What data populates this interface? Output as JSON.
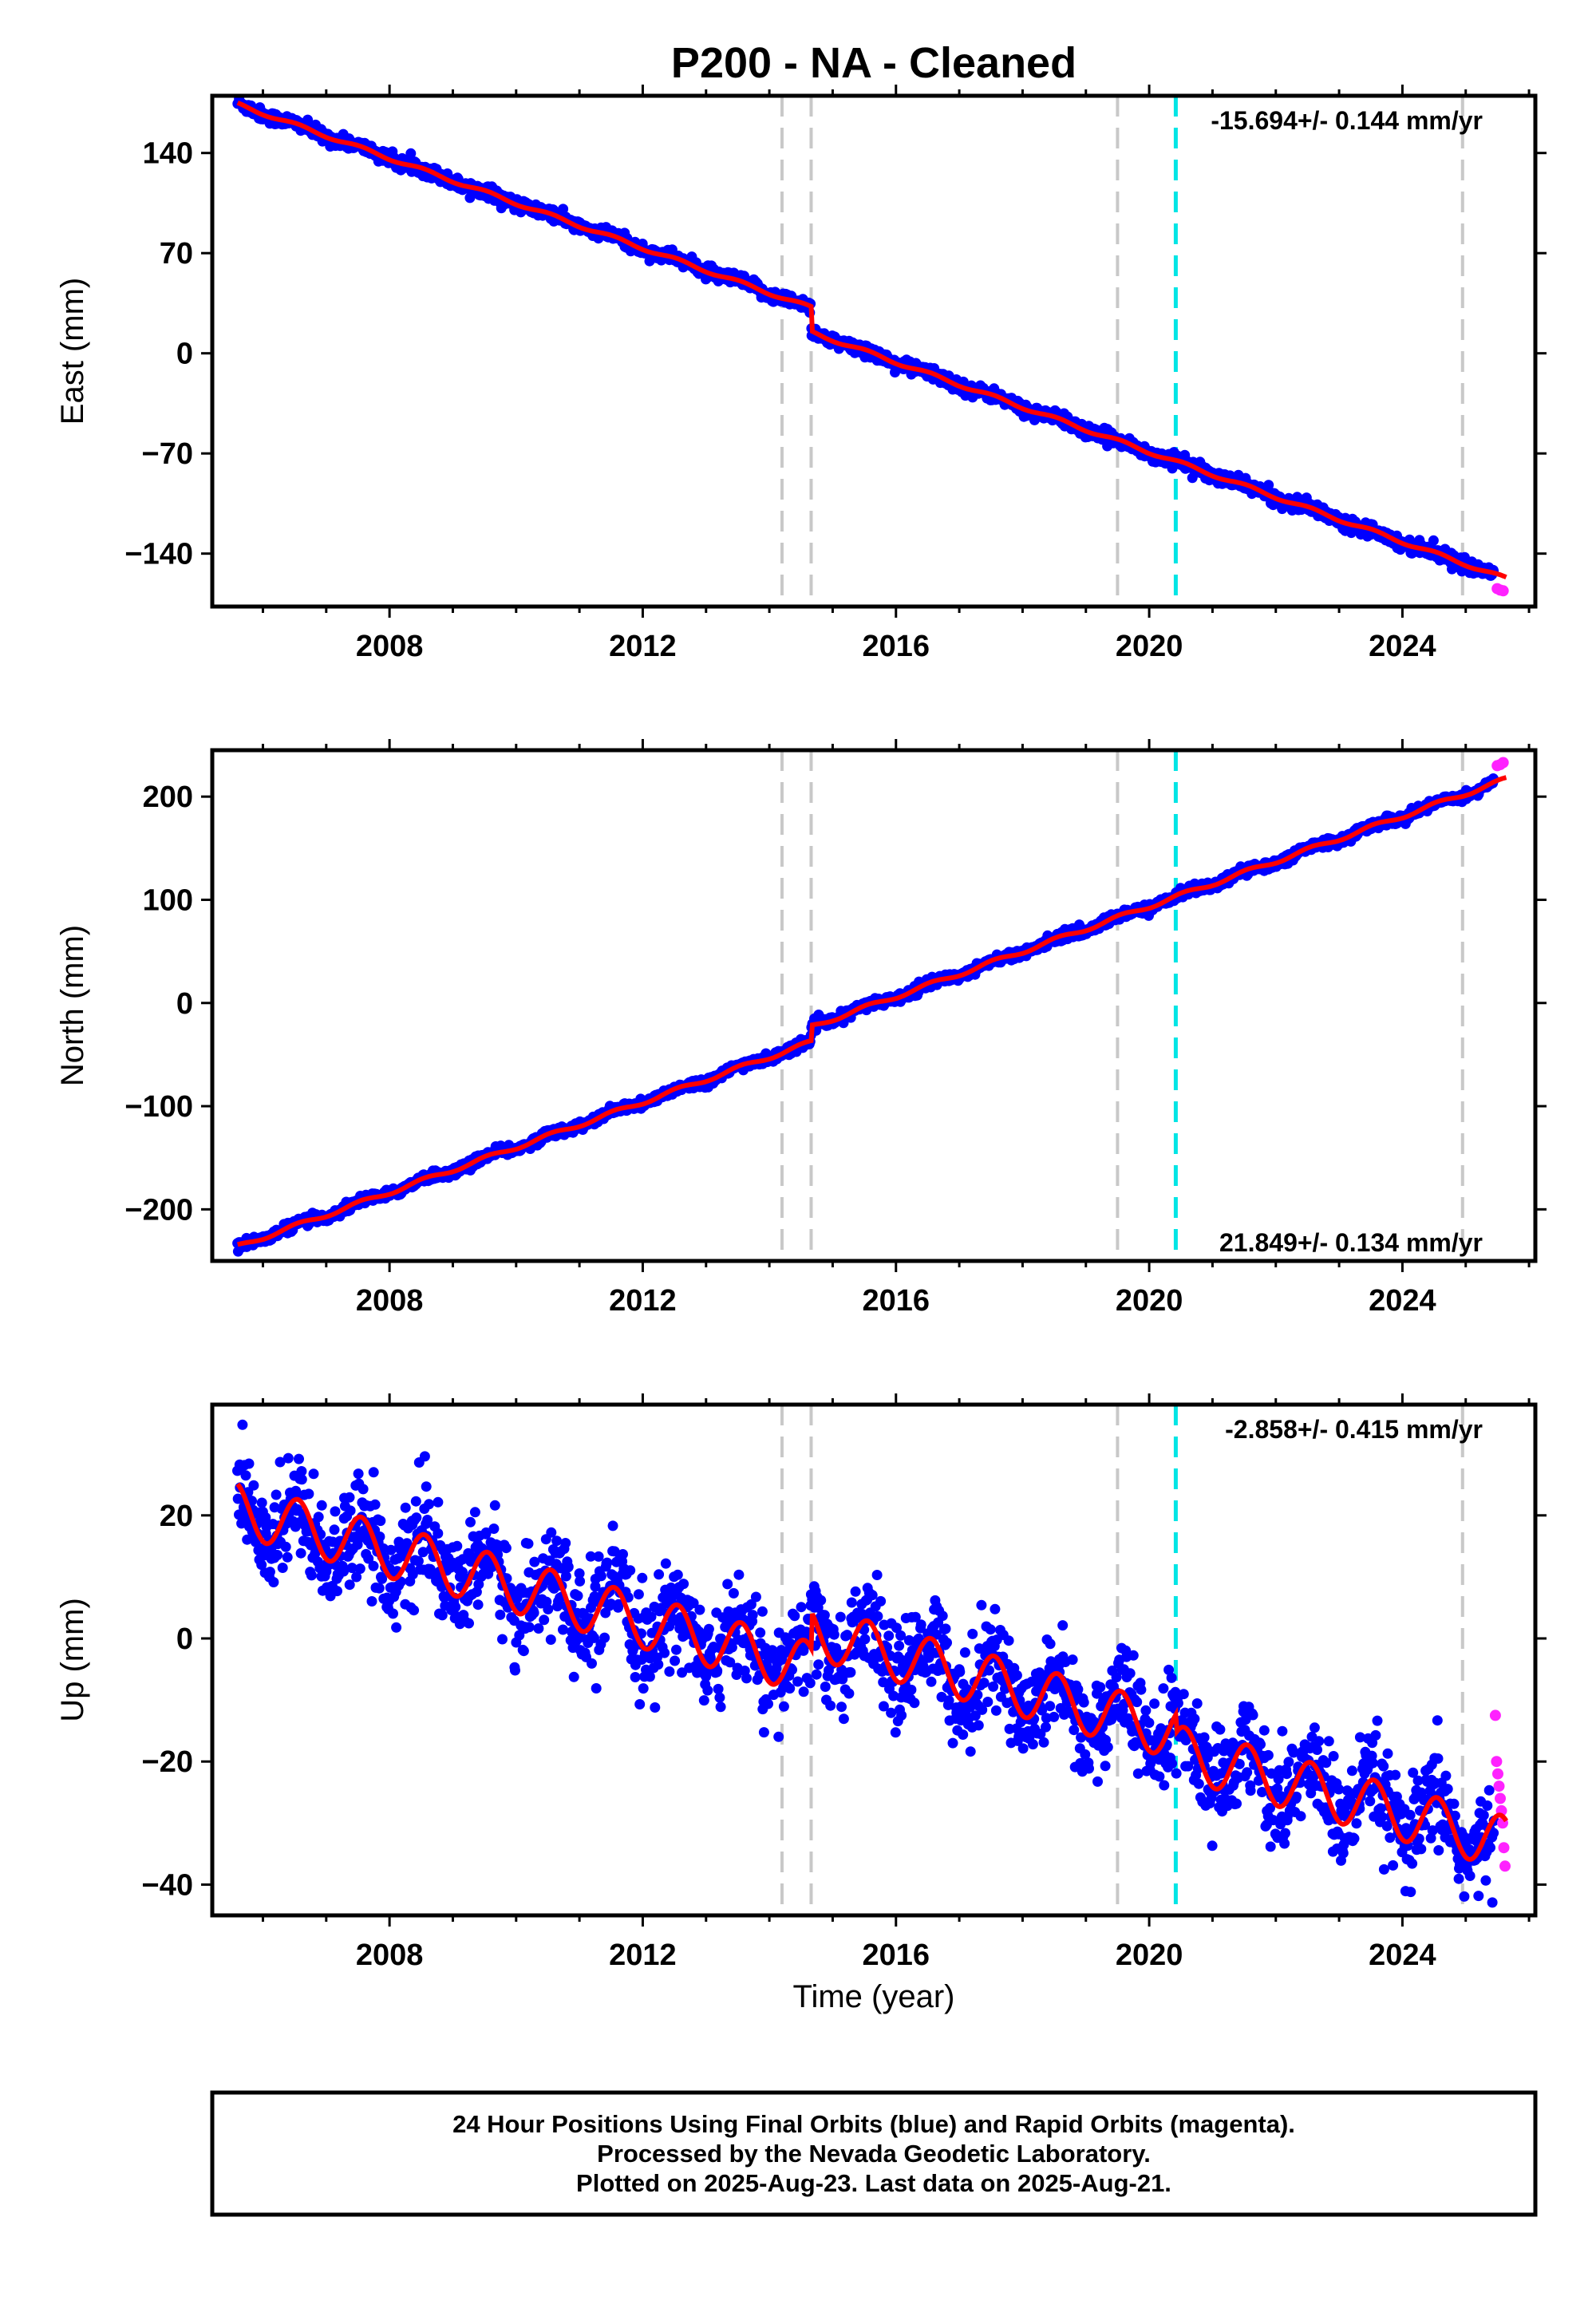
{
  "title": "P200  - NA - Cleaned",
  "xlabel": "Time (year)",
  "footer": {
    "line1": "24 Hour Positions Using Final Orbits (blue) and Rapid Orbits (magenta).",
    "line2": "Processed by the Nevada Geodetic Laboratory.",
    "line3": "Plotted on 2025-Aug-23. Last data on 2025-Aug-21."
  },
  "colors": {
    "final_orbit_points": "#0000ff",
    "rapid_orbit_points": "#ff22ff",
    "model_fit": "#ff0000",
    "event_line": "#c8c8c8",
    "antenna_change_line": "#00e5e5"
  },
  "chart_data": [
    {
      "type": "scatter",
      "component": "east",
      "ylabel": "East (mm)",
      "rate_label": "-15.694+/- 0.144 mm/yr",
      "rate_position": "top-right",
      "xlim": [
        2005.2,
        2026.1
      ],
      "ylim": [
        -177,
        180
      ],
      "x_ticks": [
        2008,
        2012,
        2016,
        2020,
        2024
      ],
      "y_ticks": [
        140,
        70,
        0,
        -70,
        -140
      ],
      "y_tick_labels": [
        "140",
        "70",
        "0",
        "−70",
        "−140"
      ],
      "start_year": 2005.6,
      "end_year": 2025.64,
      "start_value": 174,
      "trend_mm_per_yr": -15.694,
      "offsets": [
        {
          "year": 2014.66,
          "value": -17
        }
      ],
      "seasonal_amplitude_mm": 1.2,
      "noise_mm": 2.2,
      "rapid_points": {
        "start_year": 2025.45,
        "values": [
          -164.5,
          -165.5,
          -166
        ]
      },
      "event_lines": [
        2014.2,
        2014.66,
        2019.5,
        2024.95
      ],
      "antenna_lines": [
        2020.42
      ],
      "grid": false
    },
    {
      "type": "scatter",
      "component": "north",
      "ylabel": "North (mm)",
      "rate_label": "21.849+/- 0.134 mm/yr",
      "rate_position": "bottom-right",
      "xlim": [
        2005.2,
        2026.1
      ],
      "ylim": [
        -250,
        245
      ],
      "x_ticks": [
        2008,
        2012,
        2016,
        2020,
        2024
      ],
      "y_ticks": [
        200,
        100,
        0,
        -100,
        -200
      ],
      "y_tick_labels": [
        "200",
        "100",
        "0",
        "−100",
        "−200"
      ],
      "start_year": 2005.6,
      "end_year": 2025.64,
      "start_value": -236,
      "trend_mm_per_yr": 21.849,
      "offsets": [
        {
          "year": 2014.66,
          "value": 15
        }
      ],
      "seasonal_amplitude_mm": 2,
      "noise_mm": 2.3,
      "rapid_points": {
        "start_year": 2025.45,
        "values": [
          230,
          231,
          233
        ]
      },
      "event_lines": [
        2014.2,
        2014.66,
        2019.5,
        2024.95
      ],
      "antenna_lines": [
        2020.42
      ],
      "grid": false
    },
    {
      "type": "scatter",
      "component": "up",
      "ylabel": "Up (mm)",
      "rate_label": "-2.858+/- 0.415 mm/yr",
      "rate_position": "top-right",
      "xlim": [
        2005.2,
        2026.1
      ],
      "ylim": [
        -45,
        38
      ],
      "x_ticks": [
        2008,
        2012,
        2016,
        2020,
        2024
      ],
      "y_ticks": [
        20,
        0,
        -20,
        -40
      ],
      "y_tick_labels": [
        "20",
        "0",
        "−20",
        "−40"
      ],
      "start_year": 2005.6,
      "end_year": 2025.64,
      "start_value": 21,
      "trend_mm_per_yr": -2.858,
      "offsets": [
        {
          "year": 2014.66,
          "value": 6
        },
        {
          "year": 2020.42,
          "value": -3
        }
      ],
      "seasonal_amplitude_mm": 4.3,
      "noise_mm": 4,
      "rapid_points": {
        "start_year": 2025.45,
        "values": [
          -12.5,
          -20,
          -22,
          -24,
          -26,
          -28,
          -30,
          -34,
          -37
        ]
      },
      "event_lines": [
        2014.2,
        2014.66,
        2019.5,
        2024.95
      ],
      "antenna_lines": [
        2020.42
      ],
      "grid": false
    }
  ]
}
